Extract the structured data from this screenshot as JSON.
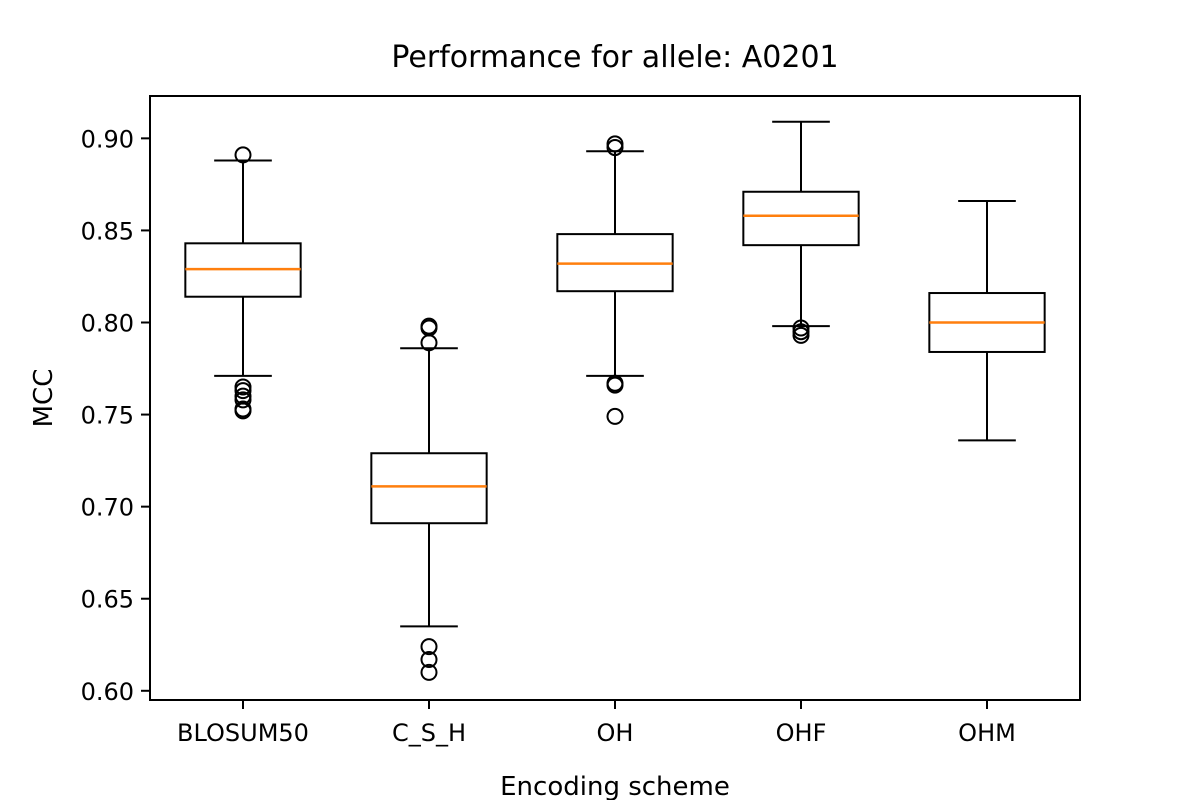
{
  "chart_data": {
    "type": "box",
    "title": "Performance for allele: A0201",
    "xlabel": "Encoding scheme",
    "ylabel": "MCC",
    "ylim": [
      0.595,
      0.923
    ],
    "yticks": [
      0.6,
      0.65,
      0.7,
      0.75,
      0.8,
      0.85,
      0.9
    ],
    "ytick_labels": [
      "0.60",
      "0.65",
      "0.70",
      "0.75",
      "0.80",
      "0.85",
      "0.90"
    ],
    "categories": [
      "BLOSUM50",
      "C_S_H",
      "OH",
      "OHF",
      "OHM"
    ],
    "boxes": [
      {
        "label": "BLOSUM50",
        "whisker_low": 0.771,
        "q1": 0.814,
        "median": 0.829,
        "q3": 0.843,
        "whisker_high": 0.888,
        "outliers": [
          0.891,
          0.765,
          0.763,
          0.76,
          0.758,
          0.753,
          0.752
        ]
      },
      {
        "label": "C_S_H",
        "whisker_low": 0.635,
        "q1": 0.691,
        "median": 0.711,
        "q3": 0.729,
        "whisker_high": 0.786,
        "outliers": [
          0.798,
          0.797,
          0.789,
          0.624,
          0.617,
          0.61
        ]
      },
      {
        "label": "OH",
        "whisker_low": 0.771,
        "q1": 0.817,
        "median": 0.832,
        "q3": 0.848,
        "whisker_high": 0.893,
        "outliers": [
          0.897,
          0.895,
          0.767,
          0.766,
          0.749
        ]
      },
      {
        "label": "OHF",
        "whisker_low": 0.798,
        "q1": 0.842,
        "median": 0.858,
        "q3": 0.871,
        "whisker_high": 0.909,
        "outliers": [
          0.797,
          0.795,
          0.793
        ]
      },
      {
        "label": "OHM",
        "whisker_low": 0.736,
        "q1": 0.784,
        "median": 0.8,
        "q3": 0.816,
        "whisker_high": 0.866,
        "outliers": []
      }
    ],
    "colors": {
      "box": "#000000",
      "median": "#ff7f0e",
      "background": "#ffffff"
    },
    "grid": false,
    "legend": "none"
  }
}
